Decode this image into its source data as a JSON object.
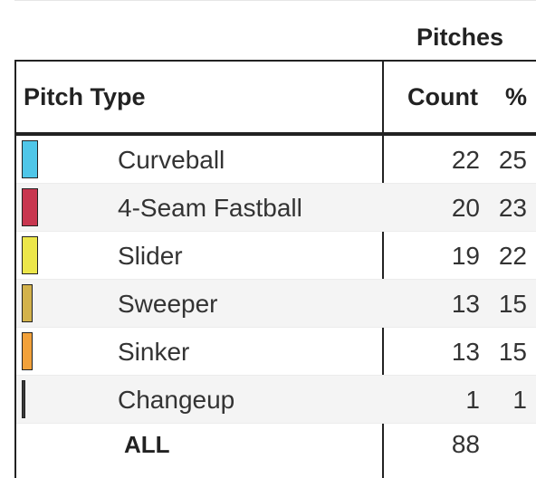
{
  "table": {
    "group_header": "Pitches",
    "columns": {
      "pitch_type": "Pitch Type",
      "count": "Count",
      "percent": "%"
    },
    "rows": [
      {
        "name": "Curveball",
        "count": "22",
        "percent": "25",
        "color": "#4fc6e8"
      },
      {
        "name": "4-Seam Fastball",
        "count": "20",
        "percent": "23",
        "color": "#c8364f"
      },
      {
        "name": "Slider",
        "count": "19",
        "percent": "22",
        "color": "#ece64a"
      },
      {
        "name": "Sweeper",
        "count": "13",
        "percent": "15",
        "color": "#d3b24b"
      },
      {
        "name": "Sinker",
        "count": "13",
        "percent": "15",
        "color": "#f2a13a"
      },
      {
        "name": "Changeup",
        "count": "1",
        "percent": "1",
        "color": "#3a3a3a"
      }
    ],
    "total": {
      "label": "ALL",
      "count": "88"
    }
  }
}
